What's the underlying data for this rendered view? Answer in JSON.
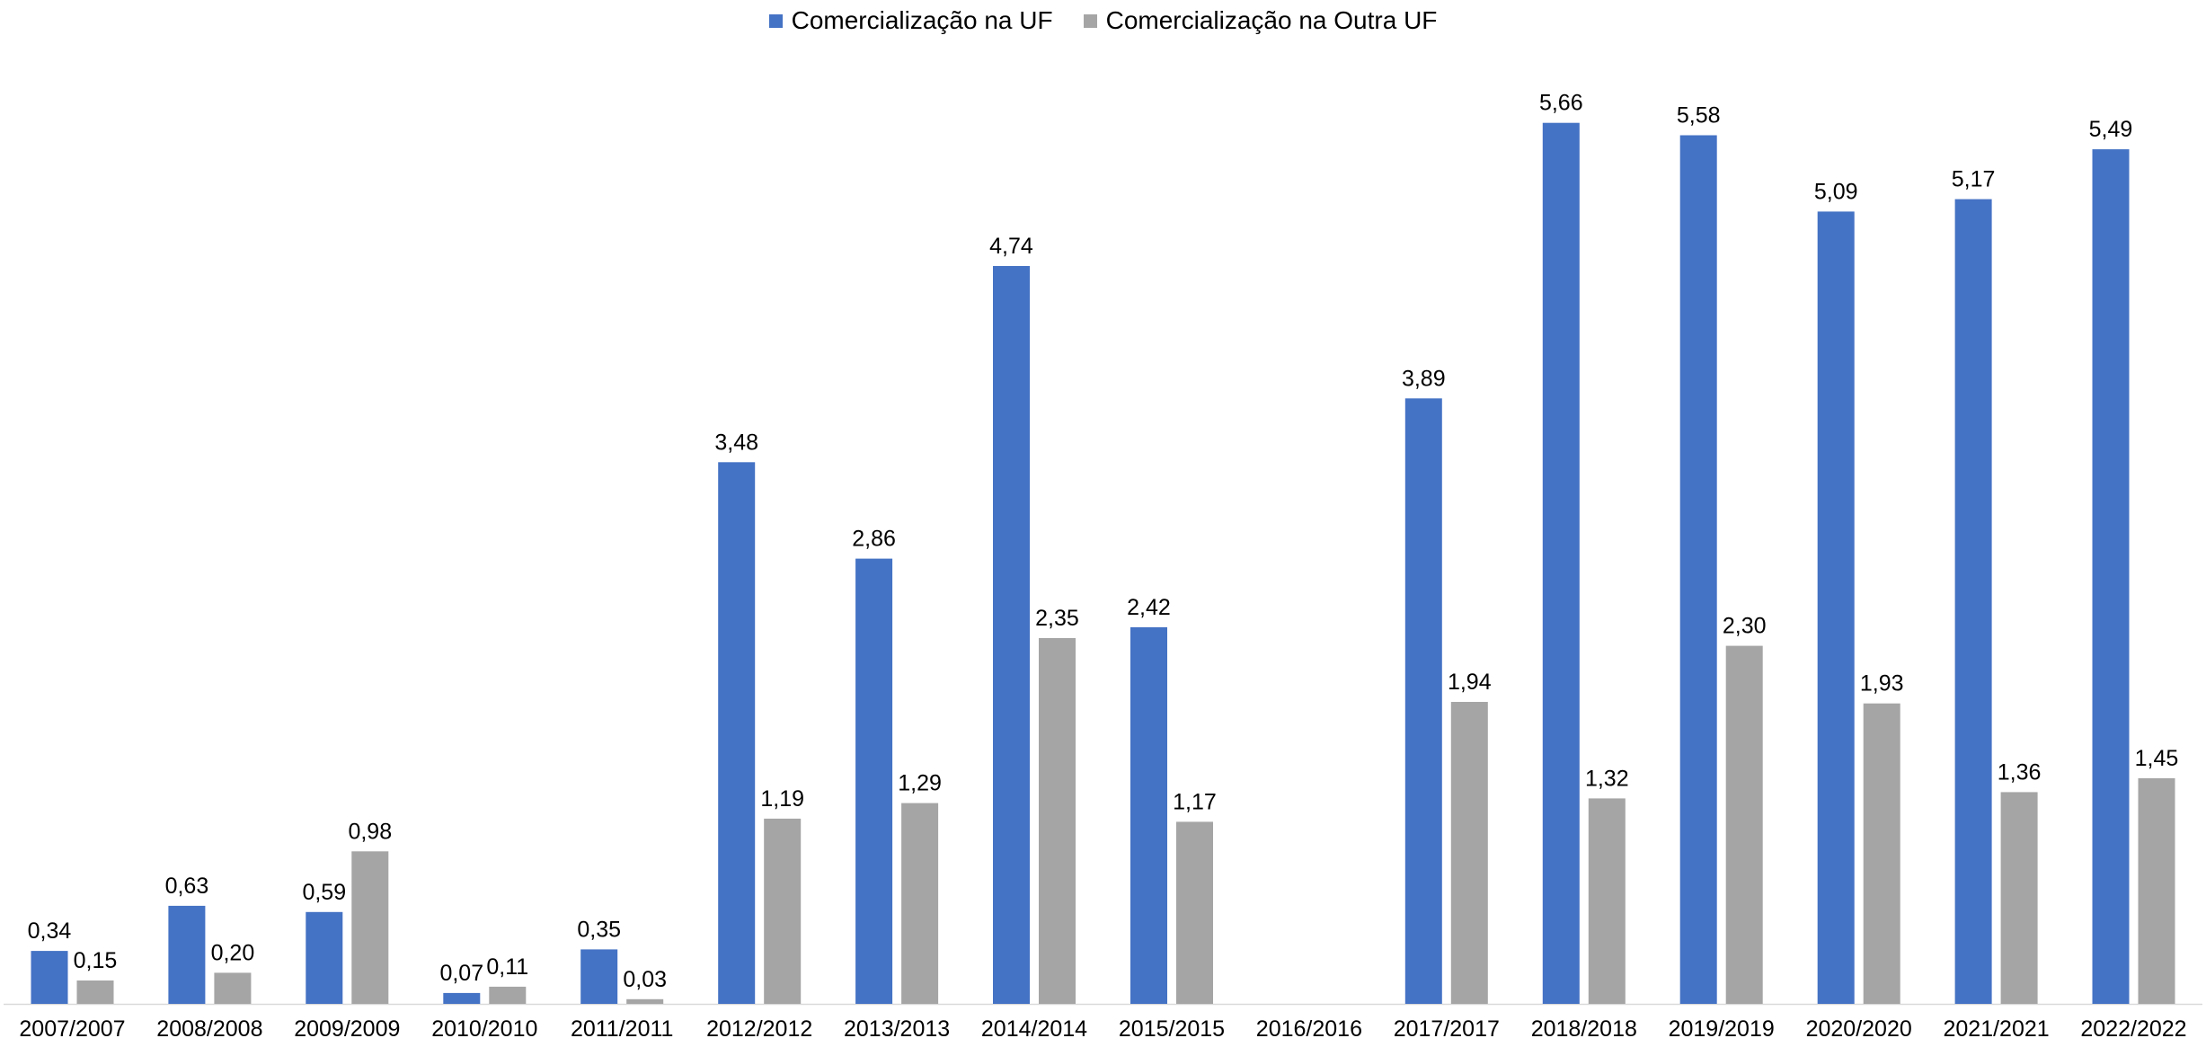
{
  "chart_data": {
    "type": "bar",
    "title": "",
    "xlabel": "",
    "ylabel": "",
    "ylim": [
      0,
      6
    ],
    "grid": false,
    "legend_position": "top-center",
    "categories": [
      "2007/2007",
      "2008/2008",
      "2009/2009",
      "2010/2010",
      "2011/2011",
      "2012/2012",
      "2013/2013",
      "2014/2014",
      "2015/2015",
      "2016/2016",
      "2017/2017",
      "2018/2018",
      "2019/2019",
      "2020/2020",
      "2021/2021",
      "2022/2022"
    ],
    "series": [
      {
        "name": "Comercialização na UF",
        "color": "#4472C4",
        "values": [
          0.34,
          0.63,
          0.59,
          0.07,
          0.35,
          3.48,
          2.86,
          4.74,
          2.42,
          null,
          3.89,
          5.66,
          5.58,
          5.09,
          5.17,
          5.49
        ],
        "labels": [
          "0,34",
          "0,63",
          "0,59",
          "0,07",
          "0,35",
          "3,48",
          "2,86",
          "4,74",
          "2,42",
          "",
          "3,89",
          "5,66",
          "5,58",
          "5,09",
          "5,17",
          "5,49"
        ]
      },
      {
        "name": "Comercialização na Outra UF",
        "color": "#A5A5A5",
        "values": [
          0.15,
          0.2,
          0.98,
          0.11,
          0.03,
          1.19,
          1.29,
          2.35,
          1.17,
          null,
          1.94,
          1.32,
          2.3,
          1.93,
          1.36,
          1.45
        ],
        "labels": [
          "0,15",
          "0,20",
          "0,98",
          "0,11",
          "0,03",
          "1,19",
          "1,29",
          "2,35",
          "1,17",
          "",
          "1,94",
          "1,32",
          "2,30",
          "1,93",
          "1,36",
          "1,45"
        ]
      }
    ]
  }
}
